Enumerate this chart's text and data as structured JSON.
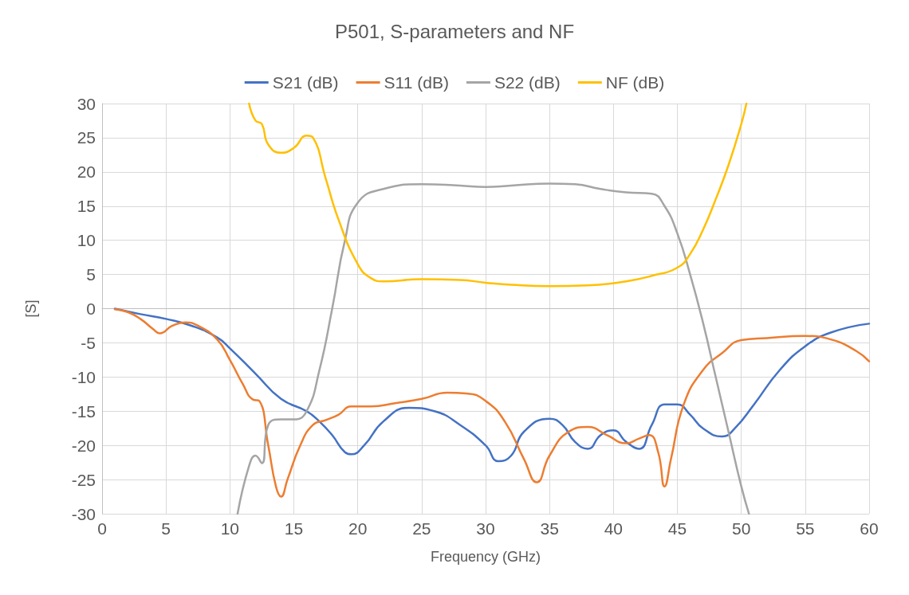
{
  "chart_data": {
    "type": "line",
    "title": "P501, S-parameters and NF",
    "xlabel": "Frequency (GHz)",
    "ylabel": "[S]",
    "xlim": [
      0,
      60
    ],
    "xticks": [
      0,
      5,
      10,
      15,
      20,
      25,
      30,
      35,
      40,
      45,
      50,
      55,
      60
    ],
    "ylim": [
      -30,
      30
    ],
    "yticks": [
      -30,
      -25,
      -20,
      -15,
      -10,
      -5,
      0,
      5,
      10,
      15,
      20,
      25,
      30
    ],
    "grid": true,
    "legend": "top",
    "marker": "none",
    "line_style": "solid",
    "series": [
      {
        "name": "S21 (dB)",
        "color": "#4472c4",
        "x": [
          1,
          3,
          5,
          7,
          9,
          10,
          12,
          14,
          16,
          17,
          18,
          19,
          19.5,
          20.5,
          22,
          24,
          26,
          28,
          30,
          31,
          32,
          33,
          35,
          36,
          37,
          38,
          39,
          40,
          41,
          42,
          43,
          44,
          45,
          46,
          47,
          48.5,
          49.5,
          51,
          53,
          55,
          57,
          60
        ],
        "values": [
          0,
          -0.8,
          -1.5,
          -2.5,
          -4.2,
          -5.8,
          -9.5,
          -13.2,
          -15,
          -16.5,
          -18.5,
          -21,
          -21.3,
          -20,
          -16.5,
          -14.5,
          -15,
          -17,
          -20,
          -22.3,
          -21.5,
          -18,
          -16.1,
          -17,
          -19.5,
          -20.5,
          -18.5,
          -17.8,
          -19.5,
          -20.5,
          -17,
          -14,
          -14,
          -15.5,
          -17.5,
          -18.7,
          -17.5,
          -14,
          -9,
          -5.5,
          -3.5,
          -2.2
        ]
      },
      {
        "name": "S11 (dB)",
        "color": "#ed7d31",
        "x": [
          1,
          2,
          3,
          4,
          4.5,
          5.5,
          6.5,
          7.5,
          9,
          10,
          11,
          11.8,
          12.3,
          13,
          13.6,
          14,
          14.5,
          15.5,
          16.5,
          17.5,
          18.5,
          19.5,
          21,
          23,
          25,
          27,
          28.5,
          30,
          31.5,
          33,
          34,
          35,
          36.5,
          38,
          39.5,
          41,
          42,
          42.8,
          43.5,
          44,
          44.5,
          45.5,
          47,
          48.5,
          50,
          52,
          55,
          57,
          59,
          60
        ],
        "values": [
          -0.1,
          -0.5,
          -1.5,
          -3,
          -3.6,
          -2.5,
          -2,
          -2.5,
          -4.5,
          -7.5,
          -11,
          -13.3,
          -13.5,
          -20,
          -26,
          -27.5,
          -25,
          -20,
          -17,
          -16.3,
          -15.5,
          -14.3,
          -14.3,
          -13.8,
          -13.2,
          -12.3,
          -12.4,
          -13.5,
          -16.5,
          -22,
          -25.4,
          -21.5,
          -18,
          -17.3,
          -18.5,
          -19.7,
          -19,
          -18.5,
          -21,
          -26,
          -22,
          -14,
          -9,
          -6.5,
          -4.6,
          -4.3,
          -4,
          -4.5,
          -6.2,
          -7.7
        ]
      },
      {
        "name": "S22 (dB)",
        "color": "#a5a5a5",
        "x": [
          10.6,
          11.5,
          12,
          12.5,
          13,
          14,
          15,
          16,
          17,
          18,
          19,
          20,
          22,
          25,
          28,
          30,
          32,
          35,
          37,
          39,
          41,
          43,
          44,
          45,
          46,
          47,
          48,
          49,
          50,
          50.6
        ],
        "values": [
          -30,
          -23,
          -21.5,
          -22.6,
          -17,
          -16.2,
          -16.2,
          -15,
          -9,
          0,
          10,
          15.5,
          17.5,
          18.2,
          18,
          17.8,
          18,
          18.3,
          18.2,
          17.5,
          17,
          16.8,
          15,
          11,
          5,
          -2,
          -10,
          -18,
          -26,
          -30
        ]
      },
      {
        "name": "NF (dB)",
        "color": "#ffc000",
        "x": [
          11.5,
          12,
          12.5,
          13,
          14,
          15,
          16,
          16.5,
          17.5,
          18.5,
          20,
          21,
          22,
          25,
          28,
          30,
          32,
          35,
          38,
          41,
          43,
          45,
          46,
          47,
          48,
          49,
          50,
          50.4
        ],
        "values": [
          30,
          27.5,
          27,
          24,
          22.8,
          23.5,
          25.3,
          25,
          19,
          13,
          6.5,
          4.5,
          4,
          4.3,
          4.2,
          3.8,
          3.5,
          3.3,
          3.4,
          4,
          4.8,
          6,
          8,
          11.5,
          16,
          21,
          27,
          30
        ]
      }
    ]
  }
}
